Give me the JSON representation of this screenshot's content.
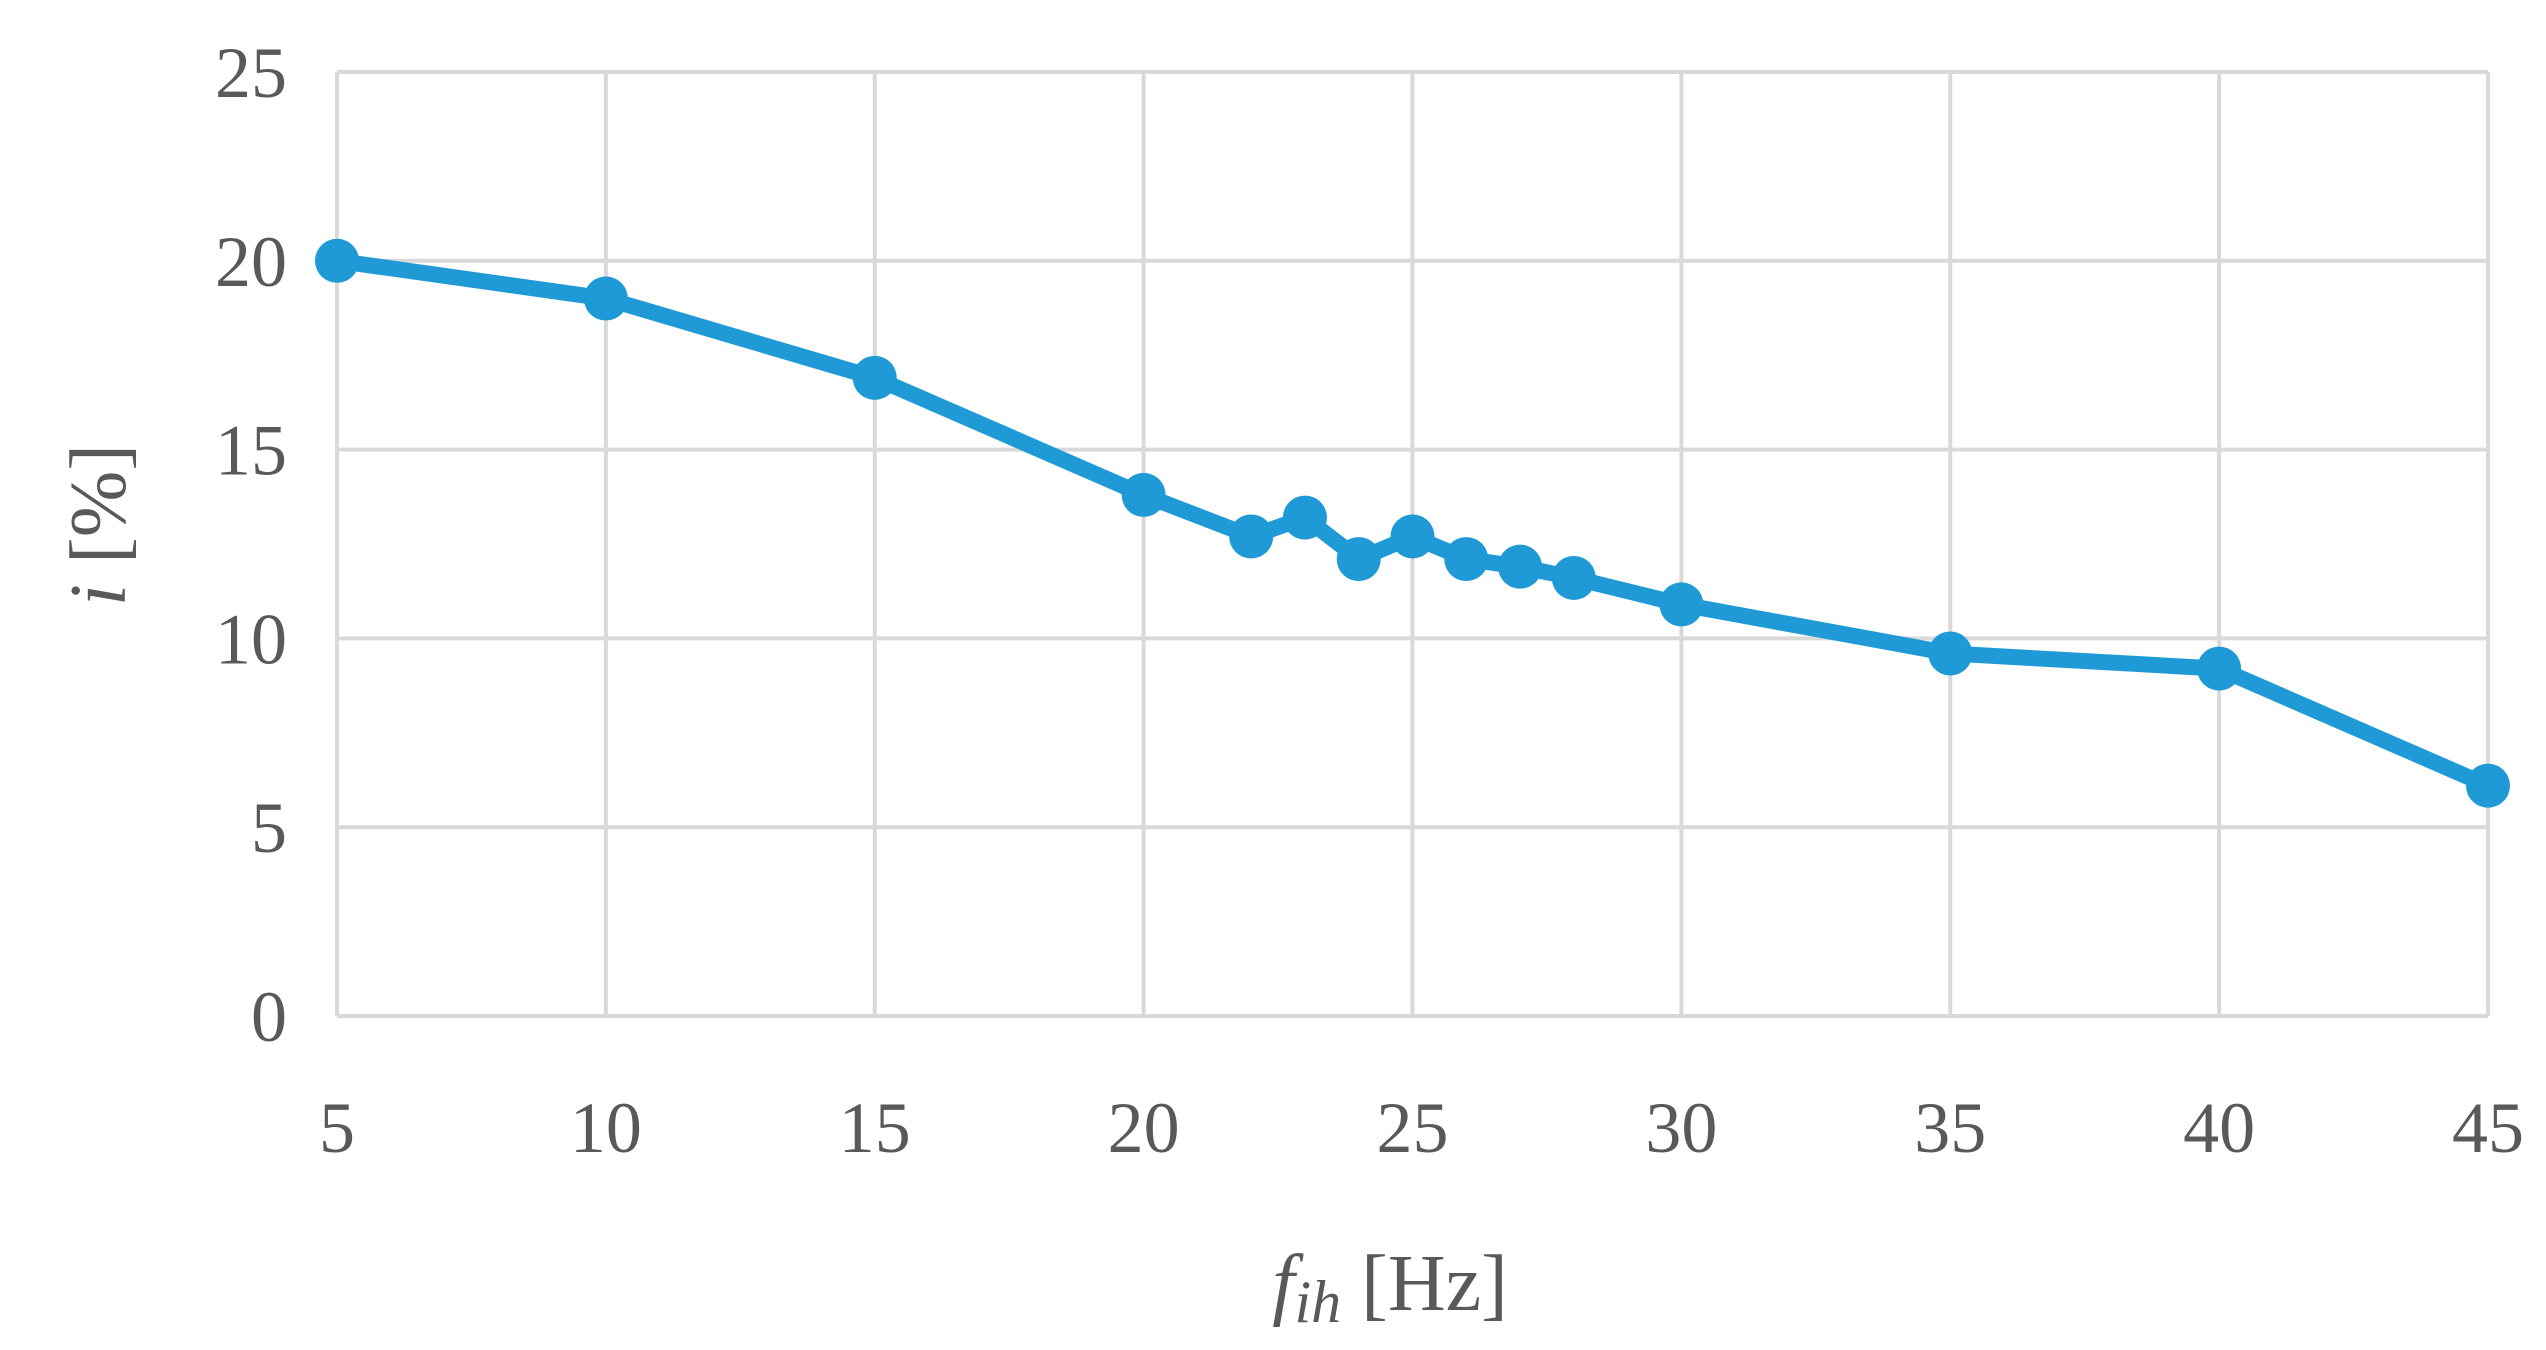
{
  "chart_data": {
    "type": "line",
    "title": "",
    "xlabel": {
      "var": "f",
      "sub": "ih",
      "unit": " [Hz]"
    },
    "ylabel": {
      "var": "i",
      "unit": " [%]"
    },
    "xlim": [
      5,
      45
    ],
    "ylim": [
      0,
      25
    ],
    "x_ticks": [
      5,
      10,
      15,
      20,
      25,
      30,
      35,
      40,
      45
    ],
    "y_ticks": [
      0,
      5,
      10,
      15,
      20,
      25
    ],
    "grid": true,
    "legend": "none",
    "series": [
      {
        "color": "#1f9ad6",
        "x": [
          5,
          10,
          15,
          20,
          22,
          23,
          24,
          25,
          26,
          27,
          28,
          30,
          35,
          40,
          45
        ],
        "y": [
          20.0,
          19.0,
          16.9,
          13.8,
          12.7,
          13.2,
          12.1,
          12.7,
          12.1,
          11.9,
          11.6,
          10.9,
          9.6,
          9.2,
          6.1
        ]
      }
    ]
  }
}
